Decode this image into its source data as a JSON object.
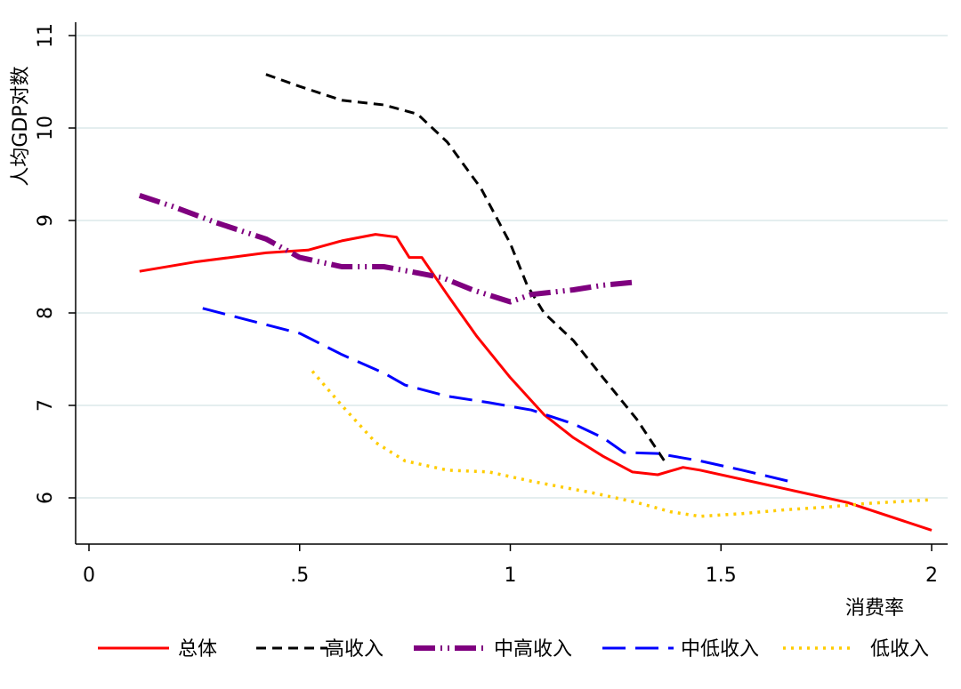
{
  "chart_data": {
    "type": "line",
    "title": "",
    "xlabel": "消费率",
    "ylabel": "人均GDP对数",
    "xlim": [
      0,
      2
    ],
    "ylim": [
      5.5,
      11.1
    ],
    "x_ticks": [
      {
        "value": 0,
        "label": "0"
      },
      {
        "value": 0.5,
        "label": ".5"
      },
      {
        "value": 1,
        "label": "1"
      },
      {
        "value": 1.5,
        "label": "1.5"
      },
      {
        "value": 2,
        "label": "2"
      }
    ],
    "y_ticks": [
      {
        "value": 6,
        "label": "6"
      },
      {
        "value": 7,
        "label": "7"
      },
      {
        "value": 8,
        "label": "8"
      },
      {
        "value": 9,
        "label": "9"
      },
      {
        "value": 10,
        "label": "10"
      },
      {
        "value": 11,
        "label": "11"
      }
    ],
    "grid": "horizontal",
    "legend_position": "bottom",
    "series": [
      {
        "name": "总体",
        "color": "#ff0000",
        "style": "solid",
        "points": [
          [
            0.12,
            8.45
          ],
          [
            0.25,
            8.55
          ],
          [
            0.42,
            8.65
          ],
          [
            0.52,
            8.68
          ],
          [
            0.6,
            8.78
          ],
          [
            0.68,
            8.85
          ],
          [
            0.73,
            8.82
          ],
          [
            0.76,
            8.6
          ],
          [
            0.79,
            8.6
          ],
          [
            0.85,
            8.2
          ],
          [
            0.92,
            7.75
          ],
          [
            1.0,
            7.3
          ],
          [
            1.08,
            6.9
          ],
          [
            1.15,
            6.65
          ],
          [
            1.22,
            6.45
          ],
          [
            1.29,
            6.28
          ],
          [
            1.35,
            6.25
          ],
          [
            1.38,
            6.29
          ],
          [
            1.41,
            6.33
          ],
          [
            1.45,
            6.3
          ],
          [
            1.6,
            6.15
          ],
          [
            1.8,
            5.95
          ],
          [
            2.0,
            5.65
          ]
        ]
      },
      {
        "name": "高收入",
        "color": "#000000",
        "style": "dash",
        "points": [
          [
            0.42,
            10.58
          ],
          [
            0.5,
            10.45
          ],
          [
            0.6,
            10.3
          ],
          [
            0.7,
            10.25
          ],
          [
            0.78,
            10.15
          ],
          [
            0.85,
            9.85
          ],
          [
            0.93,
            9.35
          ],
          [
            1.0,
            8.75
          ],
          [
            1.04,
            8.3
          ],
          [
            1.08,
            8.0
          ],
          [
            1.15,
            7.7
          ],
          [
            1.22,
            7.3
          ],
          [
            1.3,
            6.85
          ],
          [
            1.37,
            6.37
          ]
        ]
      },
      {
        "name": "中高收入",
        "color": "#7f007f",
        "style": "dash-dot",
        "points": [
          [
            0.12,
            9.27
          ],
          [
            0.2,
            9.15
          ],
          [
            0.3,
            8.98
          ],
          [
            0.42,
            8.8
          ],
          [
            0.5,
            8.6
          ],
          [
            0.6,
            8.5
          ],
          [
            0.7,
            8.5
          ],
          [
            0.76,
            8.45
          ],
          [
            0.84,
            8.38
          ],
          [
            0.91,
            8.25
          ],
          [
            1.0,
            8.12
          ],
          [
            1.05,
            8.2
          ],
          [
            1.15,
            8.25
          ],
          [
            1.22,
            8.3
          ],
          [
            1.29,
            8.33
          ]
        ]
      },
      {
        "name": "中低收入",
        "color": "#0000ff",
        "style": "long-dash",
        "points": [
          [
            0.27,
            8.05
          ],
          [
            0.38,
            7.92
          ],
          [
            0.5,
            7.78
          ],
          [
            0.6,
            7.55
          ],
          [
            0.7,
            7.35
          ],
          [
            0.75,
            7.22
          ],
          [
            0.85,
            7.1
          ],
          [
            0.95,
            7.03
          ],
          [
            1.05,
            6.95
          ],
          [
            1.15,
            6.8
          ],
          [
            1.22,
            6.65
          ],
          [
            1.27,
            6.49
          ],
          [
            1.35,
            6.48
          ],
          [
            1.45,
            6.4
          ],
          [
            1.55,
            6.3
          ],
          [
            1.67,
            6.17
          ]
        ]
      },
      {
        "name": "低收入",
        "color": "#ffcc00",
        "style": "dot",
        "points": [
          [
            0.53,
            7.37
          ],
          [
            0.6,
            7.0
          ],
          [
            0.68,
            6.6
          ],
          [
            0.75,
            6.4
          ],
          [
            0.85,
            6.3
          ],
          [
            0.95,
            6.28
          ],
          [
            1.05,
            6.18
          ],
          [
            1.2,
            6.05
          ],
          [
            1.3,
            5.95
          ],
          [
            1.38,
            5.85
          ],
          [
            1.45,
            5.8
          ],
          [
            1.55,
            5.83
          ],
          [
            1.65,
            5.87
          ],
          [
            1.75,
            5.9
          ],
          [
            1.85,
            5.94
          ],
          [
            2.0,
            5.98
          ]
        ]
      }
    ]
  }
}
